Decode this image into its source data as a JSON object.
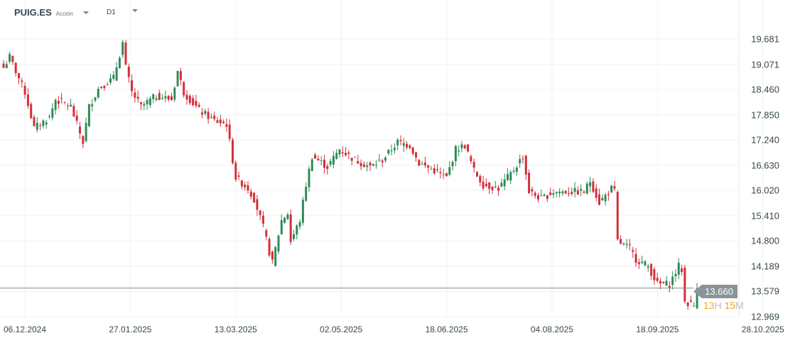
{
  "header": {
    "symbol": "PUIG.ES",
    "type": "Acción",
    "timeframe": "D1"
  },
  "countdown": {
    "h": "13",
    "h_unit": "H",
    "m": "15",
    "m_unit": "M"
  },
  "chart_data": {
    "type": "candlestick",
    "y_ticks": [
      "19.681",
      "19.071",
      "18.460",
      "17.850",
      "17.240",
      "16.630",
      "16.020",
      "15.410",
      "14.800",
      "14.189",
      "13.579",
      "12.969"
    ],
    "ylim": [
      12.969,
      19.681
    ],
    "x_ticks": [
      "06.12.2024",
      "27.01.2025",
      "13.03.2025",
      "02.05.2025",
      "18.06.2025",
      "04.08.2025",
      "18.09.2025",
      "28.10.2025"
    ],
    "current_price": "13.660",
    "up_color": "#2e8b57",
    "down_color": "#d32f3a",
    "close_path": [
      [
        0,
        18.99
      ],
      [
        2,
        19.25
      ],
      [
        7,
        18.39
      ],
      [
        10,
        17.53
      ],
      [
        15,
        17.79
      ],
      [
        17,
        18.22
      ],
      [
        22,
        18.05
      ],
      [
        26,
        17.19
      ],
      [
        28,
        18.05
      ],
      [
        31,
        18.48
      ],
      [
        36,
        18.74
      ],
      [
        39,
        19.59
      ],
      [
        40,
        18.99
      ],
      [
        42,
        18.39
      ],
      [
        45,
        18.05
      ],
      [
        50,
        18.31
      ],
      [
        55,
        18.22
      ],
      [
        57,
        18.91
      ],
      [
        59,
        18.39
      ],
      [
        64,
        17.96
      ],
      [
        69,
        17.71
      ],
      [
        73,
        17.62
      ],
      [
        76,
        16.33
      ],
      [
        80,
        16.07
      ],
      [
        82,
        15.82
      ],
      [
        85,
        15.13
      ],
      [
        87,
        14.53
      ],
      [
        88,
        14.27
      ],
      [
        91,
        15.3
      ],
      [
        93,
        15.47
      ],
      [
        94,
        14.79
      ],
      [
        97,
        15.3
      ],
      [
        99,
        16.16
      ],
      [
        101,
        16.85
      ],
      [
        106,
        16.59
      ],
      [
        110,
        17.02
      ],
      [
        115,
        16.76
      ],
      [
        120,
        16.59
      ],
      [
        124,
        16.76
      ],
      [
        129,
        17.19
      ],
      [
        133,
        17.11
      ],
      [
        136,
        16.68
      ],
      [
        141,
        16.5
      ],
      [
        145,
        16.33
      ],
      [
        148,
        17.02
      ],
      [
        151,
        17.11
      ],
      [
        154,
        16.5
      ],
      [
        157,
        16.16
      ],
      [
        162,
        16.07
      ],
      [
        166,
        16.42
      ],
      [
        170,
        16.85
      ],
      [
        172,
        15.99
      ],
      [
        176,
        15.82
      ],
      [
        180,
        15.99
      ],
      [
        185,
        15.99
      ],
      [
        190,
        15.99
      ],
      [
        192,
        16.25
      ],
      [
        195,
        15.73
      ],
      [
        199,
        16.07
      ],
      [
        200,
        15.99
      ],
      [
        201,
        14.79
      ],
      [
        205,
        14.62
      ],
      [
        207,
        14.36
      ],
      [
        211,
        14.19
      ],
      [
        214,
        13.76
      ],
      [
        218,
        13.76
      ],
      [
        221,
        14.19
      ],
      [
        222,
        14.1
      ],
      [
        223,
        13.33
      ],
      [
        226,
        13.24
      ],
      [
        227,
        13.66
      ]
    ]
  }
}
